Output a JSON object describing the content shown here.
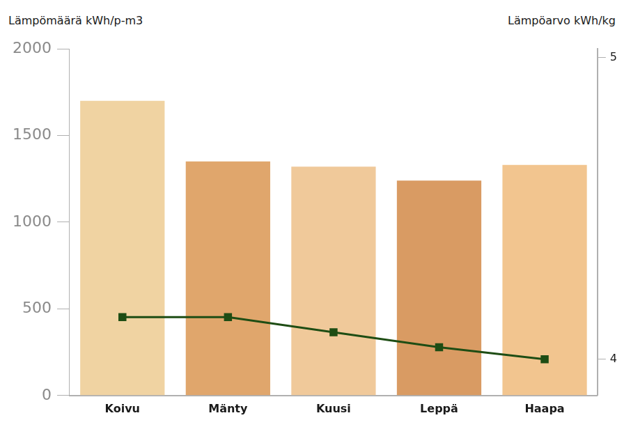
{
  "chart_data": {
    "type": "bar",
    "ylabel": "Lämpömäärä kWh/p-m3",
    "y2label": "Lämpöarvo kWh/kg",
    "categories": [
      "Koivu",
      "Mänty",
      "Kuusi",
      "Leppä",
      "Haapa"
    ],
    "series": [
      {
        "type": "bar",
        "colors": [
          "#f0d3a2",
          "#e0a66c",
          "#f0c99a",
          "#d99b63",
          "#f2c58f"
        ],
        "values": [
          1700,
          1350,
          1320,
          1240,
          1330
        ]
      },
      {
        "type": "line",
        "color": "#1e4d14",
        "marker": "square",
        "line_style": "solid",
        "axis": "y2",
        "values": [
          4.14,
          4.14,
          4.09,
          4.04,
          4.0
        ]
      }
    ],
    "ylim": [
      0,
      2000
    ],
    "yticks": [
      0,
      500,
      1000,
      1500,
      2000
    ],
    "y2lim": [
      3.88,
      5.03
    ],
    "y2ticks": [
      4,
      5
    ],
    "grid": false
  }
}
